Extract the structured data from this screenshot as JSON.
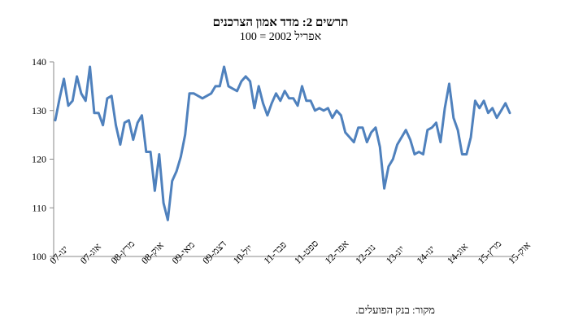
{
  "chart_data": {
    "type": "line",
    "title": "תרשים 2: מדד אמון הצרכנים",
    "subtitle": "אפריל 2002 = 100",
    "ylim": [
      100,
      140
    ],
    "yticks": [
      100,
      110,
      120,
      130,
      140
    ],
    "grid": false,
    "line_color": "#4F81BD",
    "x_tick_labels": [
      "ינו-07",
      "אוג-07",
      "מרץ-08",
      "אוק-08",
      "מאי-09",
      "דצמ-09",
      "יול-10",
      "פבר-11",
      "ספט-11",
      "אפר-12",
      "נוב-12",
      "יונ-13",
      "ינו-14",
      "אוג-14",
      "מרץ-15",
      "אוק-15"
    ],
    "series": [
      {
        "values": [
          128,
          132.5,
          136.5,
          131,
          132,
          137,
          133.5,
          132,
          139,
          129.5,
          129.5,
          127,
          132.5,
          133,
          127,
          123,
          127.5,
          128,
          124,
          127.5,
          129,
          121.5,
          121.5,
          113.5,
          121,
          111,
          107.5,
          115.5,
          117.5,
          120.5,
          125,
          133.5,
          133.5,
          133,
          132.5,
          133,
          133.5,
          135,
          135,
          139,
          135,
          134.5,
          134,
          136,
          137,
          136,
          130.5,
          135,
          131.5,
          129,
          131.5,
          133.5,
          132,
          134,
          132.5,
          132.5,
          131,
          135,
          132,
          132,
          130,
          130.5,
          130,
          130.5,
          128.5,
          130,
          129,
          125.5,
          124.5,
          123.5,
          126.5,
          126.5,
          123.5,
          125.5,
          126.5,
          122.5,
          114,
          118.5,
          120,
          123,
          124.5,
          126,
          124,
          121,
          121.5,
          121,
          126,
          126.5,
          127.5,
          123.5,
          130.5,
          135.5,
          128.5,
          126,
          121,
          121,
          124.5,
          132,
          130.5,
          132,
          129.5,
          130.5,
          128.5,
          130,
          131.5,
          129.5
        ]
      }
    ]
  },
  "source": "מקור: בנק הפועלים."
}
